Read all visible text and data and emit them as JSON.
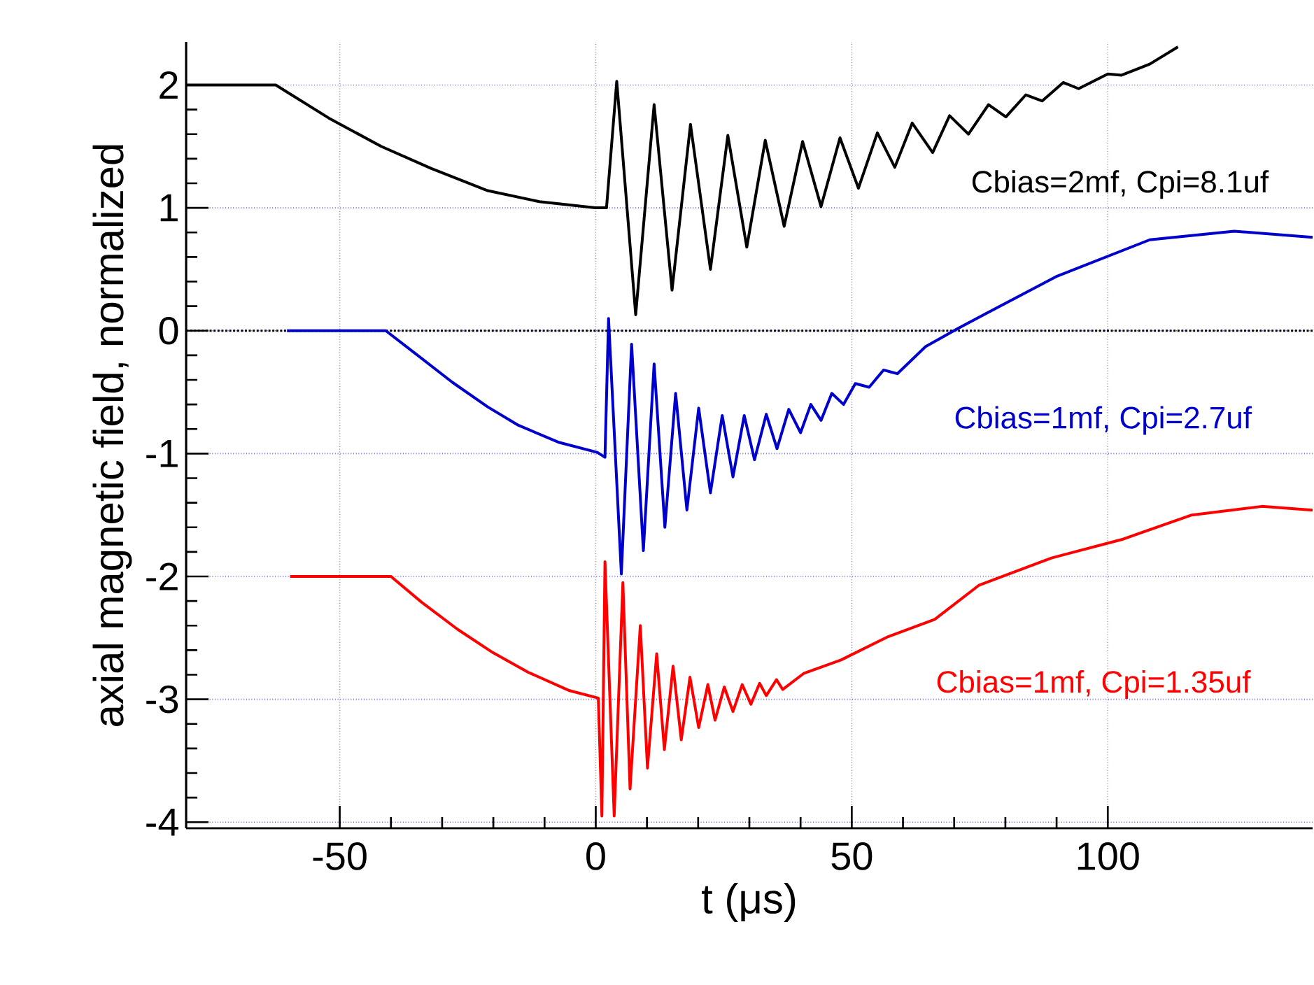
{
  "chart_data": {
    "type": "line",
    "xlabel": "t (μs)",
    "ylabel": "axial magnetic field, normalized",
    "xlim": [
      -80,
      140
    ],
    "ylim": [
      -4.05,
      2.35
    ],
    "xticks": [
      -50,
      0,
      50,
      100
    ],
    "yticks": [
      -4,
      -3,
      -2,
      -1,
      0,
      1,
      2
    ],
    "grid": true,
    "ref_lines": [
      {
        "axis": "y",
        "value": 0,
        "color": "#000000",
        "line_style": "dotted"
      }
    ],
    "series": [
      {
        "name": "Cbias=2mf, Cpi=8.1uf",
        "color": "#000000",
        "x": [
          -80,
          -62.5,
          -52.1,
          -41.9,
          -32.1,
          -21.1,
          -11.0,
          -0.1,
          2.1,
          4.1,
          7.8,
          11.4,
          14.9,
          18.5,
          22.4,
          25.8,
          29.5,
          33.1,
          36.8,
          40.4,
          44.0,
          47.7,
          51.3,
          55.0,
          58.4,
          61.8,
          65.8,
          69.1,
          72.8,
          76.7,
          80.1,
          84.0,
          87.2,
          91.3,
          94.3,
          100.0,
          102.7,
          108.2,
          113.7
        ],
        "values": [
          2.0,
          2.0,
          1.73,
          1.5,
          1.32,
          1.14,
          1.05,
          1.0,
          1.0,
          2.03,
          0.13,
          1.84,
          0.33,
          1.68,
          0.5,
          1.59,
          0.68,
          1.55,
          0.85,
          1.54,
          1.01,
          1.57,
          1.16,
          1.61,
          1.33,
          1.69,
          1.45,
          1.75,
          1.6,
          1.84,
          1.74,
          1.92,
          1.87,
          2.02,
          1.97,
          2.09,
          2.08,
          2.17,
          2.31
        ]
      },
      {
        "name": "Cbias=1mf, Cpi=2.7uf",
        "color": "#0000cc",
        "x": [
          -60.3,
          -41.0,
          -35.1,
          -28.0,
          -21.1,
          -15.1,
          -7.1,
          0.3,
          1.8,
          2.5,
          5.0,
          7.0,
          9.3,
          11.4,
          13.5,
          15.6,
          17.8,
          20.1,
          22.4,
          24.7,
          26.8,
          29.0,
          31.0,
          33.3,
          35.4,
          37.7,
          40.0,
          42.0,
          44.0,
          46.1,
          48.4,
          50.7,
          53.4,
          56.2,
          58.9,
          64.4,
          70.8,
          76.2,
          89.9,
          108.2,
          124.7,
          140
        ],
        "values": [
          0.0,
          0.0,
          -0.19,
          -0.42,
          -0.62,
          -0.77,
          -0.91,
          -0.99,
          -1.03,
          0.1,
          -1.98,
          -0.11,
          -1.79,
          -0.27,
          -1.6,
          -0.51,
          -1.46,
          -0.63,
          -1.32,
          -0.69,
          -1.19,
          -0.69,
          -1.05,
          -0.68,
          -0.96,
          -0.64,
          -0.83,
          -0.6,
          -0.73,
          -0.51,
          -0.6,
          -0.43,
          -0.46,
          -0.32,
          -0.35,
          -0.13,
          0.02,
          0.14,
          0.44,
          0.74,
          0.81,
          0.76
        ]
      },
      {
        "name": "Cbias=1mf, Cpi=1.35uf",
        "color": "#ff0000",
        "x": [
          -59.7,
          -40.0,
          -34.0,
          -27.0,
          -20.1,
          -13.2,
          -5.1,
          0.5,
          1.2,
          1.8,
          3.6,
          5.3,
          6.7,
          8.7,
          10.1,
          11.9,
          13.4,
          15.1,
          16.7,
          18.4,
          20.1,
          21.9,
          23.3,
          25.1,
          26.8,
          28.6,
          30.3,
          32.0,
          33.3,
          35.3,
          36.5,
          40.6,
          47.9,
          57.1,
          66.2,
          74.9,
          89.0,
          102.7,
          116.4,
          130.1,
          140
        ],
        "values": [
          -2.0,
          -2.0,
          -2.21,
          -2.43,
          -2.62,
          -2.78,
          -2.93,
          -2.99,
          -3.95,
          -1.88,
          -3.95,
          -2.05,
          -3.73,
          -2.4,
          -3.56,
          -2.63,
          -3.41,
          -2.73,
          -3.33,
          -2.82,
          -3.23,
          -2.88,
          -3.17,
          -2.9,
          -3.1,
          -2.88,
          -3.04,
          -2.87,
          -2.97,
          -2.84,
          -2.92,
          -2.79,
          -2.68,
          -2.49,
          -2.35,
          -2.07,
          -1.85,
          -1.7,
          -1.5,
          -1.43,
          -1.46
        ]
      }
    ]
  }
}
